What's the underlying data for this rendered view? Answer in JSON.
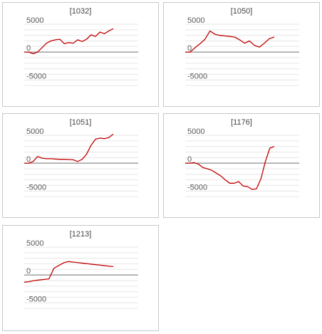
{
  "colors": {
    "line": "#c00000",
    "zero_line": "#8c8c8c",
    "grid": "#e6e6e6",
    "axis_text": "#595959",
    "border": "#c8c8c8"
  },
  "chart_data": [
    {
      "type": "line",
      "title": "[1032]",
      "ylim": [
        -6500,
        5000
      ],
      "yticks": [
        5000,
        0,
        -5000
      ],
      "grid": true,
      "series": [
        {
          "values": [
            0,
            0,
            -300,
            0,
            800,
            1600,
            2000,
            2200,
            2300,
            1500,
            1700,
            1600,
            2200,
            1900,
            2300,
            3100,
            2800,
            3600,
            3300,
            3800,
            4200
          ]
        }
      ]
    },
    {
      "type": "line",
      "title": "[1050]",
      "ylim": [
        -6500,
        5000
      ],
      "yticks": [
        5000,
        0,
        -5000
      ],
      "grid": true,
      "series": [
        {
          "values": [
            0,
            0,
            800,
            1500,
            2300,
            3800,
            3200,
            3000,
            2900,
            2800,
            2700,
            2200,
            1600,
            2000,
            1200,
            900,
            1600,
            2400,
            2700
          ]
        }
      ]
    },
    {
      "type": "line",
      "title": "[1051]",
      "ylim": [
        -6500,
        5000
      ],
      "yticks": [
        5000,
        0,
        -5000
      ],
      "grid": true,
      "series": [
        {
          "values": [
            0,
            0,
            300,
            1200,
            900,
            800,
            800,
            750,
            700,
            700,
            650,
            600,
            300,
            700,
            1600,
            3200,
            4300,
            4500,
            4400,
            4600,
            5200
          ]
        }
      ]
    },
    {
      "type": "line",
      "title": "[1176]",
      "ylim": [
        -6500,
        5000
      ],
      "yticks": [
        5000,
        0,
        -5000
      ],
      "grid": true,
      "series": [
        {
          "values": [
            0,
            0,
            100,
            -200,
            -800,
            -1000,
            -1300,
            -1800,
            -2300,
            -3000,
            -3600,
            -3600,
            -3300,
            -4100,
            -4200,
            -4700,
            -4600,
            -2800,
            300,
            2700,
            3000
          ]
        }
      ]
    },
    {
      "type": "line",
      "title": "[1213]",
      "ylim": [
        -6500,
        5000
      ],
      "yticks": [
        5000,
        0,
        -5000
      ],
      "grid": true,
      "series": [
        {
          "values": [
            -1300,
            -1200,
            -1000,
            -900,
            -800,
            -700,
            1200,
            1700,
            2200,
            2400,
            2300,
            2200,
            2100,
            2000,
            1900,
            1800,
            1700,
            1600,
            1500
          ]
        }
      ]
    }
  ]
}
